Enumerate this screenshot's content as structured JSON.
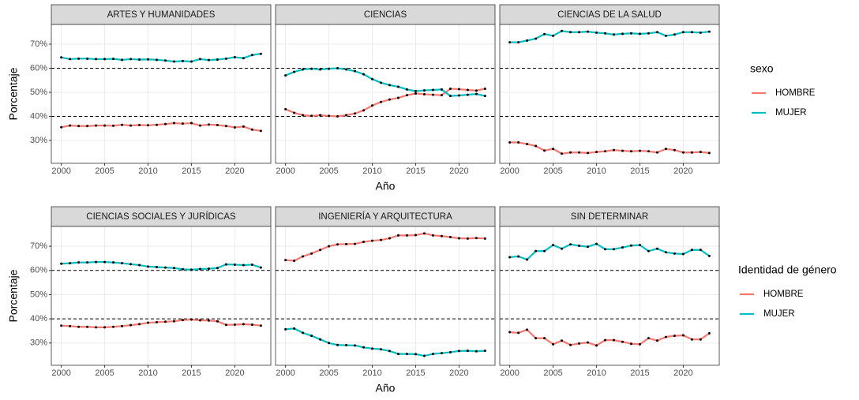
{
  "chart_data": [
    {
      "type": "line",
      "y_label": "Porcentaje",
      "x_label": "Año",
      "legend_title": "sexo",
      "series": [
        {
          "name": "HOMBRE",
          "color": "#F8766D"
        },
        {
          "name": "MUJER",
          "color": "#00BFC4"
        }
      ],
      "x": [
        2000,
        2001,
        2002,
        2003,
        2004,
        2005,
        2006,
        2007,
        2008,
        2009,
        2010,
        2011,
        2012,
        2013,
        2014,
        2015,
        2016,
        2017,
        2018,
        2019,
        2020,
        2021,
        2022,
        2023
      ],
      "xlim": [
        1998.85,
        2024.15
      ],
      "xticks": [
        2000,
        2005,
        2010,
        2015,
        2020
      ],
      "ylim": [
        20.5,
        78.2
      ],
      "yticks": [
        {
          "value": 30,
          "label": "30%"
        },
        {
          "value": 40,
          "label": "40%"
        },
        {
          "value": 50,
          "label": "50%"
        },
        {
          "value": 60,
          "label": "60%"
        },
        {
          "value": 70,
          "label": "70%"
        }
      ],
      "hlines": [
        40,
        60
      ],
      "grid": true,
      "panels": [
        {
          "title": "ARTES Y HUMANIDADES",
          "values": [
            [
              35.5,
              36.2,
              36,
              36,
              36.2,
              36.2,
              36.1,
              36.5,
              36.2,
              36.4,
              36.3,
              36.5,
              36.8,
              37.2,
              37,
              37.2,
              36.2,
              36.6,
              36.4,
              36,
              35.4,
              35.8,
              34.5,
              34
            ],
            [
              64.5,
              63.8,
              64,
              64,
              63.8,
              63.8,
              63.9,
              63.5,
              63.8,
              63.6,
              63.7,
              63.5,
              63.2,
              62.8,
              63,
              62.8,
              63.8,
              63.4,
              63.6,
              64,
              64.6,
              64.2,
              65.5,
              66
            ]
          ]
        },
        {
          "title": "CIENCIAS",
          "values": [
            [
              43,
              41.5,
              40.5,
              40.2,
              40.5,
              40.2,
              40,
              40.5,
              41.2,
              42.5,
              44.5,
              46,
              47,
              47.7,
              48.8,
              49.5,
              49.2,
              49,
              48.8,
              51.5,
              51.3,
              51,
              50.7,
              51.5
            ],
            [
              57,
              58.5,
              59.5,
              59.8,
              59.5,
              59.8,
              60,
              59.5,
              58.8,
              57.5,
              55.5,
              54,
              53,
              52.3,
              51.2,
              50.5,
              50.8,
              51,
              51.2,
              48.5,
              48.7,
              49,
              49.3,
              48.5
            ]
          ]
        },
        {
          "title": "CIENCIAS DE LA SALUD",
          "values": [
            [
              29.2,
              29.2,
              28.5,
              27.7,
              25.8,
              26.5,
              24.5,
              25,
              25,
              24.8,
              25.2,
              25.5,
              26,
              25.7,
              25.5,
              25.7,
              25.5,
              25,
              26.5,
              26,
              25,
              25,
              25.2,
              24.8
            ],
            [
              70.8,
              70.8,
              71.5,
              72.3,
              74.2,
              73.5,
              75.5,
              75,
              75,
              75.2,
              74.8,
              74.5,
              74,
              74.3,
              74.5,
              74.3,
              74.5,
              75,
              73.5,
              74,
              75,
              75,
              74.8,
              75.2
            ]
          ]
        }
      ]
    },
    {
      "type": "line",
      "y_label": "Porcentaje",
      "x_label": "Año",
      "legend_title": "Identidad de género",
      "series": [
        {
          "name": "HOMBRE",
          "color": "#F8766D"
        },
        {
          "name": "MUJER",
          "color": "#00BFC4"
        }
      ],
      "x": [
        2000,
        2001,
        2002,
        2003,
        2004,
        2005,
        2006,
        2007,
        2008,
        2009,
        2010,
        2011,
        2012,
        2013,
        2014,
        2015,
        2016,
        2017,
        2018,
        2019,
        2020,
        2021,
        2022,
        2023
      ],
      "xlim": [
        1998.85,
        2024.15
      ],
      "xticks": [
        2000,
        2005,
        2010,
        2015,
        2020
      ],
      "ylim": [
        20.8,
        78.2
      ],
      "yticks": [
        {
          "value": 30,
          "label": "30%"
        },
        {
          "value": 40,
          "label": "40%"
        },
        {
          "value": 50,
          "label": "50%"
        },
        {
          "value": 60,
          "label": "60%"
        },
        {
          "value": 70,
          "label": "70%"
        }
      ],
      "hlines": [
        40,
        60
      ],
      "grid": true,
      "panels": [
        {
          "title": "CIENCIAS SOCIALES Y JURÍDICAS",
          "values": [
            [
              37.2,
              37,
              36.7,
              36.7,
              36.5,
              36.5,
              36.7,
              37,
              37.4,
              37.8,
              38.4,
              38.6,
              38.8,
              39,
              39.5,
              39.7,
              39.4,
              39.3,
              39,
              37.5,
              37.6,
              37.8,
              37.6,
              37.2
            ],
            [
              62.8,
              63,
              63.3,
              63.3,
              63.5,
              63.5,
              63.3,
              63,
              62.6,
              62.2,
              61.6,
              61.4,
              61.2,
              61,
              60.5,
              60.3,
              60.6,
              60.7,
              61,
              62.5,
              62.4,
              62.2,
              62.4,
              61.2
            ]
          ]
        },
        {
          "title": "INGENIERÍA Y ARQUITECTURA",
          "values": [
            [
              64.3,
              64,
              65.8,
              67,
              68.5,
              70,
              70.8,
              70.9,
              71,
              71.8,
              72.3,
              72.6,
              73.3,
              74.5,
              74.5,
              74.6,
              75.3,
              74.5,
              74.2,
              73.8,
              73.3,
              73.2,
              73.4,
              73.2
            ],
            [
              35.7,
              36,
              34.2,
              33,
              31.5,
              30,
              29.2,
              29.1,
              29,
              28.2,
              27.7,
              27.4,
              26.7,
              25.5,
              25.5,
              25.4,
              24.7,
              25.5,
              25.8,
              26.2,
              26.7,
              26.8,
              26.6,
              26.8
            ]
          ]
        },
        {
          "title": "SIN DETERMINAR",
          "values": [
            [
              34.5,
              34.2,
              35.5,
              32,
              32,
              29.5,
              31,
              29.2,
              29.8,
              30.2,
              29,
              31.2,
              31.2,
              30.5,
              29.7,
              29.5,
              32,
              31,
              32.5,
              33,
              33.2,
              31.5,
              31.5,
              34
            ],
            [
              65.5,
              65.8,
              64.5,
              68,
              68,
              70.5,
              69,
              70.8,
              70.2,
              69.8,
              71,
              68.8,
              68.8,
              69.5,
              70.3,
              70.5,
              68,
              69,
              67.5,
              67,
              66.8,
              68.5,
              68.5,
              66
            ]
          ]
        }
      ]
    }
  ]
}
